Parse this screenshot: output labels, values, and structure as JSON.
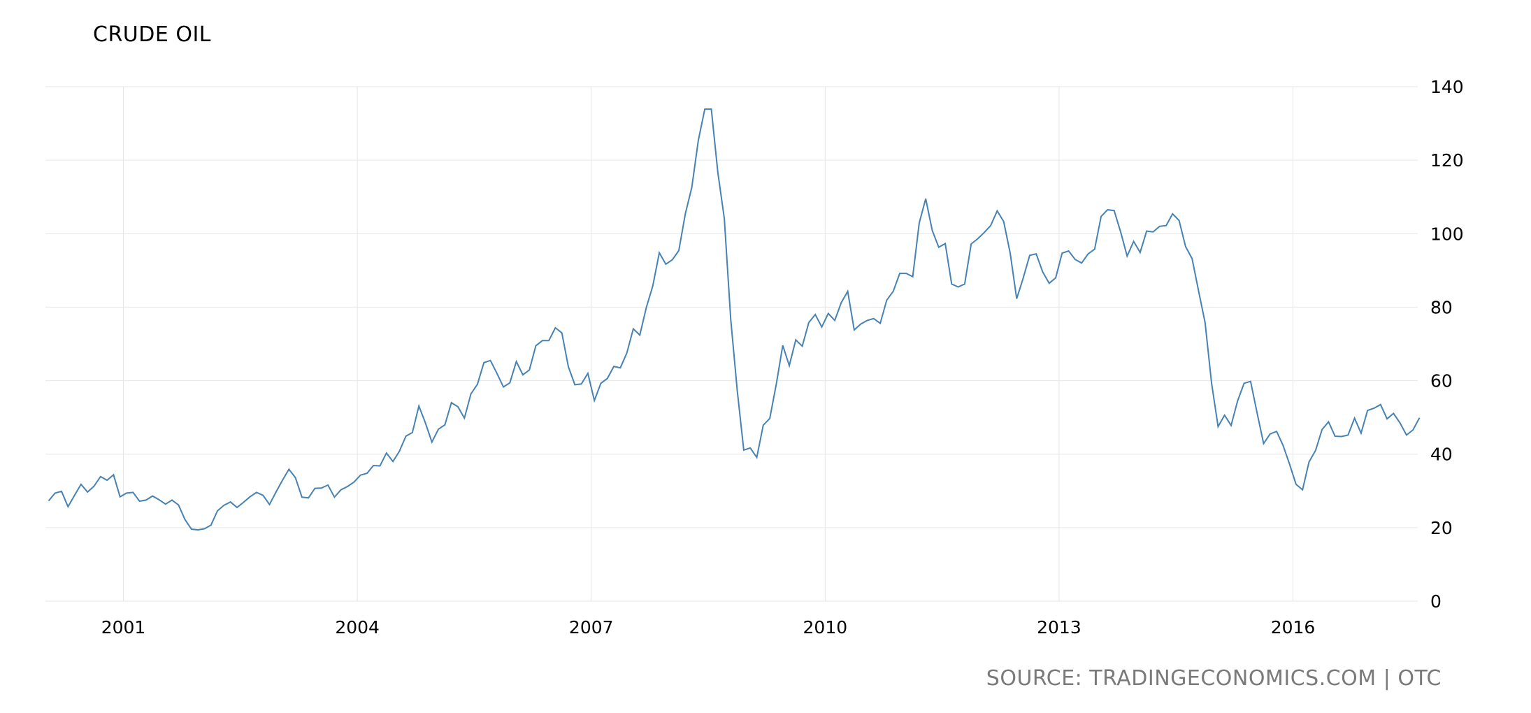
{
  "title": "CRUDE OIL",
  "source": "SOURCE: TRADINGECONOMICS.COM | OTC",
  "colors": {
    "line": "#4682b4",
    "grid": "#e6e6e6",
    "source_text": "#7a7a7a"
  },
  "chart_data": {
    "type": "line",
    "title": "CRUDE OIL",
    "xlabel": "",
    "ylabel": "",
    "ylim": [
      0,
      140
    ],
    "y_ticks": [
      0,
      20,
      40,
      60,
      80,
      100,
      120,
      140
    ],
    "x_ticks": [
      2001,
      2004,
      2007,
      2010,
      2013,
      2016
    ],
    "xlim": [
      2000.0,
      2017.6
    ],
    "grid": true,
    "y_axis_side": "right",
    "series": [
      {
        "name": "",
        "x_start": 2000.04,
        "x_step": 0.08333,
        "values": [
          27.3,
          29.4,
          29.9,
          25.7,
          28.8,
          31.8,
          29.7,
          31.3,
          33.9,
          32.9,
          34.4,
          28.4,
          29.4,
          29.6,
          27.2,
          27.5,
          28.6,
          27.6,
          26.4,
          27.5,
          26.2,
          22.2,
          19.6,
          19.4,
          19.7,
          20.7,
          24.6,
          26.1,
          27.0,
          25.5,
          26.9,
          28.4,
          29.6,
          28.8,
          26.3,
          29.7,
          32.9,
          35.9,
          33.6,
          28.3,
          28.1,
          30.7,
          30.8,
          31.6,
          28.3,
          30.3,
          31.2,
          32.4,
          34.3,
          34.8,
          36.9,
          36.8,
          40.3,
          38.0,
          40.8,
          44.9,
          45.9,
          53.1,
          48.5,
          43.3,
          46.8,
          48.0,
          54.0,
          52.9,
          49.8,
          56.4,
          59.0,
          64.9,
          65.5,
          62.0,
          58.3,
          59.4,
          65.2,
          61.6,
          62.9,
          69.5,
          70.9,
          70.9,
          74.4,
          73.0,
          63.8,
          58.9,
          59.1,
          62.0,
          54.6,
          59.3,
          60.6,
          63.9,
          63.5,
          67.5,
          74.1,
          72.4,
          79.9,
          85.8,
          94.8,
          91.7,
          92.9,
          95.4,
          105.4,
          112.6,
          125.4,
          133.9,
          133.9,
          116.7,
          104.1,
          76.6,
          57.3,
          41.1,
          41.7,
          39.1,
          47.9,
          49.7,
          59.0,
          69.6,
          64.1,
          71.1,
          69.4,
          75.8,
          78.0,
          74.6,
          78.3,
          76.4,
          81.2,
          84.3,
          73.8,
          75.4,
          76.4,
          76.9,
          75.6,
          81.9,
          84.3,
          89.2,
          89.2,
          88.3,
          102.9,
          109.5,
          100.9,
          96.3,
          97.3,
          86.3,
          85.5,
          86.3,
          97.2,
          98.6,
          100.3,
          102.2,
          106.2,
          103.3,
          94.7,
          82.3,
          87.9,
          94.1,
          94.5,
          89.6,
          86.5,
          88.0,
          94.7,
          95.3,
          93.0,
          92.0,
          94.5,
          95.8,
          104.7,
          106.5,
          106.3,
          100.5,
          93.9,
          97.9,
          94.9,
          100.7,
          100.5,
          102.0,
          102.2,
          105.4,
          103.6,
          96.5,
          93.2,
          84.4,
          75.8,
          59.3,
          47.5,
          50.6,
          47.8,
          54.5,
          59.3,
          59.8,
          51.2,
          42.9,
          45.5,
          46.2,
          42.4,
          37.3,
          31.8,
          30.3,
          37.9,
          41.0,
          46.7,
          48.8,
          44.9,
          44.8,
          45.2,
          49.8,
          45.7,
          51.9,
          52.5,
          53.5,
          49.6,
          51.1,
          48.5,
          45.2,
          46.6,
          49.9
        ]
      }
    ]
  }
}
